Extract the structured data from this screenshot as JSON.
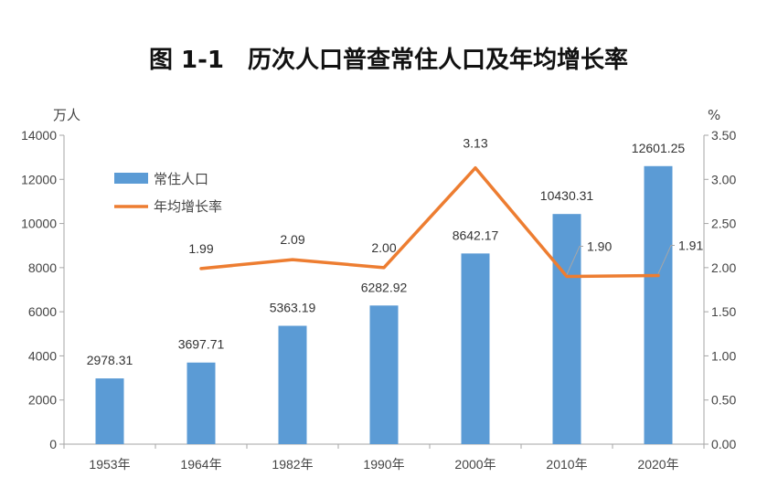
{
  "chart_data": {
    "type": "bar+line",
    "title": "图 1-1　历次人口普查常住人口及年均增长率",
    "categories": [
      "1953年",
      "1964年",
      "1982年",
      "1990年",
      "2000年",
      "2010年",
      "2020年"
    ],
    "series": [
      {
        "name": "常住人口",
        "type": "bar",
        "axis": "left",
        "color": "#5B9BD5",
        "values": [
          2978.31,
          3697.71,
          5363.19,
          6282.92,
          8642.17,
          10430.31,
          12601.25
        ],
        "labels": [
          "2978.31",
          "3697.71",
          "5363.19",
          "6282.92",
          "8642.17",
          "10430.31",
          "12601.25"
        ]
      },
      {
        "name": "年均增长率",
        "type": "line",
        "axis": "right",
        "color": "#ED7D31",
        "values": [
          null,
          1.99,
          2.09,
          2.0,
          3.13,
          1.9,
          1.91
        ],
        "labels": [
          "",
          "1.99",
          "2.09",
          "2.00",
          "3.13",
          "1.90",
          "1.91"
        ]
      }
    ],
    "y_left": {
      "label": "万人",
      "range": [
        0,
        14000
      ],
      "ticks": [
        0,
        2000,
        4000,
        6000,
        8000,
        10000,
        12000,
        14000
      ],
      "tick_labels": [
        "0",
        "2000",
        "4000",
        "6000",
        "8000",
        "10000",
        "12000",
        "14000"
      ]
    },
    "y_right": {
      "label": "%",
      "range": [
        0,
        3.5
      ],
      "ticks": [
        0,
        0.5,
        1.0,
        1.5,
        2.0,
        2.5,
        3.0,
        3.5
      ],
      "tick_labels": [
        "0.00",
        "0.50",
        "1.00",
        "1.50",
        "2.00",
        "2.50",
        "3.00",
        "3.50"
      ]
    },
    "legend": {
      "position": "top-left",
      "entries": [
        "常住人口",
        "年均增长率"
      ]
    },
    "grid": false
  }
}
